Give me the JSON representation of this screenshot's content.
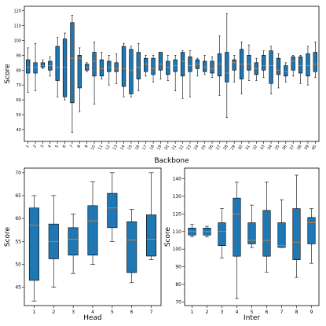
{
  "colors": {
    "box_fill": "#1f77b4",
    "median": "#ff7f0e",
    "edge": "#000000",
    "background": "#ffffff"
  },
  "chart_data": [
    {
      "type": "boxplot",
      "xlabel": "Backbone",
      "ylabel": "Score",
      "ylim": [
        32,
        123
      ],
      "yticks": [
        40,
        50,
        60,
        70,
        80,
        90,
        100,
        110,
        120
      ],
      "grid": false,
      "categories": [
        "1",
        "2",
        "3",
        "4",
        "5",
        "6",
        "7",
        "8",
        "9",
        "10",
        "11",
        "12",
        "13",
        "14",
        "15",
        "16",
        "17",
        "18",
        "19",
        "20",
        "21",
        "22",
        "23",
        "24",
        "25",
        "26",
        "27",
        "28",
        "29",
        "30",
        "31",
        "32",
        "33",
        "34",
        "35",
        "36",
        "37",
        "38",
        "39",
        "40"
      ],
      "boxes": [
        {
          "whislo": 65,
          "q1": 78,
          "med": 82,
          "q3": 87,
          "whishi": 95
        },
        {
          "whislo": 66,
          "q1": 78,
          "med": 82,
          "q3": 85,
          "whishi": 98
        },
        {
          "whislo": 81,
          "q1": 82,
          "med": 83,
          "q3": 85,
          "whishi": 87
        },
        {
          "whislo": 76,
          "q1": 80,
          "med": 83,
          "q3": 86,
          "whishi": 89
        },
        {
          "whislo": 62,
          "q1": 73,
          "med": 82,
          "q3": 96,
          "whishi": 102
        },
        {
          "whislo": 60,
          "q1": 62,
          "med": 82,
          "q3": 101,
          "whishi": 105
        },
        {
          "whislo": 38,
          "q1": 58,
          "med": 88,
          "q3": 112,
          "whishi": 117
        },
        {
          "whislo": 52,
          "q1": 68,
          "med": 88,
          "q3": 90,
          "whishi": 95
        },
        {
          "whislo": 79,
          "q1": 80,
          "med": 82,
          "q3": 84,
          "whishi": 85
        },
        {
          "whislo": 57,
          "q1": 76,
          "med": 86,
          "q3": 92,
          "whishi": 99
        },
        {
          "whislo": 74,
          "q1": 76,
          "med": 81,
          "q3": 87,
          "whishi": 92
        },
        {
          "whislo": 70,
          "q1": 79,
          "med": 82,
          "q3": 86,
          "whishi": 90
        },
        {
          "whislo": 71,
          "q1": 79,
          "med": 81,
          "q3": 85,
          "whishi": 91
        },
        {
          "whislo": 62,
          "q1": 69,
          "med": 81,
          "q3": 96,
          "whishi": 98
        },
        {
          "whislo": 62,
          "q1": 64,
          "med": 80,
          "q3": 94,
          "whishi": 96
        },
        {
          "whislo": 66,
          "q1": 74,
          "med": 82,
          "q3": 92,
          "whishi": 98
        },
        {
          "whislo": 76,
          "q1": 79,
          "med": 84,
          "q3": 88,
          "whishi": 90
        },
        {
          "whislo": 72,
          "q1": 77,
          "med": 81,
          "q3": 88,
          "whishi": 90
        },
        {
          "whislo": 74,
          "q1": 80,
          "med": 84,
          "q3": 92,
          "whishi": 92
        },
        {
          "whislo": 73,
          "q1": 77,
          "med": 82,
          "q3": 86,
          "whishi": 90
        },
        {
          "whislo": 66,
          "q1": 79,
          "med": 83,
          "q3": 87,
          "whishi": 90
        },
        {
          "whislo": 61,
          "q1": 76,
          "med": 86,
          "q3": 92,
          "whishi": 93
        },
        {
          "whislo": 62,
          "q1": 79,
          "med": 83,
          "q3": 89,
          "whishi": 93
        },
        {
          "whislo": 76,
          "q1": 81,
          "med": 84,
          "q3": 87,
          "whishi": 88
        },
        {
          "whislo": 77,
          "q1": 79,
          "med": 82,
          "q3": 86,
          "whishi": 90
        },
        {
          "whislo": 75,
          "q1": 78,
          "med": 81,
          "q3": 86,
          "whishi": 89
        },
        {
          "whislo": 63,
          "q1": 76,
          "med": 84,
          "q3": 91,
          "whishi": 103
        },
        {
          "whislo": 48,
          "q1": 72,
          "med": 78,
          "q3": 92,
          "whishi": 118
        },
        {
          "whislo": 72,
          "q1": 80,
          "med": 85,
          "q3": 87,
          "whishi": 90
        },
        {
          "whislo": 64,
          "q1": 74,
          "med": 84,
          "q3": 94,
          "whishi": 99
        },
        {
          "whislo": 73,
          "q1": 80,
          "med": 84,
          "q3": 90,
          "whishi": 97
        },
        {
          "whislo": 73,
          "q1": 77,
          "med": 81,
          "q3": 85,
          "whishi": 88
        },
        {
          "whislo": 75,
          "q1": 80,
          "med": 83,
          "q3": 90,
          "whishi": 93
        },
        {
          "whislo": 64,
          "q1": 71,
          "med": 83,
          "q3": 93,
          "whishi": 96
        },
        {
          "whislo": 68,
          "q1": 77,
          "med": 80,
          "q3": 88,
          "whishi": 91
        },
        {
          "whislo": 72,
          "q1": 76,
          "med": 79,
          "q3": 83,
          "whishi": 85
        },
        {
          "whislo": 76,
          "q1": 80,
          "med": 86,
          "q3": 89,
          "whishi": 90
        },
        {
          "whislo": 71,
          "q1": 78,
          "med": 83,
          "q3": 89,
          "whishi": 90
        },
        {
          "whislo": 70,
          "q1": 76,
          "med": 83,
          "q3": 91,
          "whishi": 96
        },
        {
          "whislo": 75,
          "q1": 79,
          "med": 84,
          "q3": 92,
          "whishi": 99
        }
      ]
    },
    {
      "type": "boxplot",
      "xlabel": "Head",
      "ylabel": "Score",
      "ylim": [
        41,
        71
      ],
      "yticks": [
        45,
        50,
        55,
        60,
        65,
        70
      ],
      "grid": false,
      "categories": [
        "1",
        "2",
        "3",
        "4",
        "5",
        "6",
        "7"
      ],
      "boxes": [
        {
          "whislo": 42,
          "q1": 46.5,
          "med": 58.5,
          "q3": 62.3,
          "whishi": 65
        },
        {
          "whislo": 45,
          "q1": 51.2,
          "med": 55,
          "q3": 58.8,
          "whishi": 65
        },
        {
          "whislo": 48,
          "q1": 52,
          "med": 55.5,
          "q3": 58,
          "whishi": 61
        },
        {
          "whislo": 50,
          "q1": 52,
          "med": 59.5,
          "q3": 62.8,
          "whishi": 68
        },
        {
          "whislo": 55,
          "q1": 58,
          "med": 62.3,
          "q3": 65.5,
          "whishi": 70
        },
        {
          "whislo": 46,
          "q1": 48.2,
          "med": 55.3,
          "q3": 59.3,
          "whishi": 62
        },
        {
          "whislo": 51,
          "q1": 51.8,
          "med": 55.5,
          "q3": 60.8,
          "whishi": 70
        }
      ]
    },
    {
      "type": "boxplot",
      "xlabel": "Inter",
      "ylabel": "Score",
      "ylim": [
        68,
        146
      ],
      "yticks": [
        70,
        80,
        90,
        100,
        110,
        120,
        130,
        140
      ],
      "grid": false,
      "categories": [
        "1",
        "2",
        "3",
        "4",
        "5",
        "6",
        "7",
        "8",
        "9"
      ],
      "boxes": [
        {
          "whislo": 107,
          "q1": 108,
          "med": 110,
          "q3": 112,
          "whishi": 114
        },
        {
          "whislo": 107,
          "q1": 108,
          "med": 110,
          "q3": 112,
          "whishi": 113
        },
        {
          "whislo": 95,
          "q1": 102,
          "med": 110,
          "q3": 115,
          "whishi": 123
        },
        {
          "whislo": 72,
          "q1": 96,
          "med": 120,
          "q3": 129,
          "whishi": 138
        },
        {
          "whislo": 101,
          "q1": 103,
          "med": 105,
          "q3": 115,
          "whishi": 125
        },
        {
          "whislo": 87,
          "q1": 96,
          "med": 105,
          "q3": 122,
          "whishi": 138
        },
        {
          "whislo": 101,
          "q1": 101,
          "med": 102,
          "q3": 115,
          "whishi": 128
        },
        {
          "whislo": 84,
          "q1": 94,
          "med": 104,
          "q3": 123,
          "whishi": 142
        },
        {
          "whislo": 92,
          "q1": 103,
          "med": 115,
          "q3": 118,
          "whishi": 123
        }
      ]
    }
  ]
}
